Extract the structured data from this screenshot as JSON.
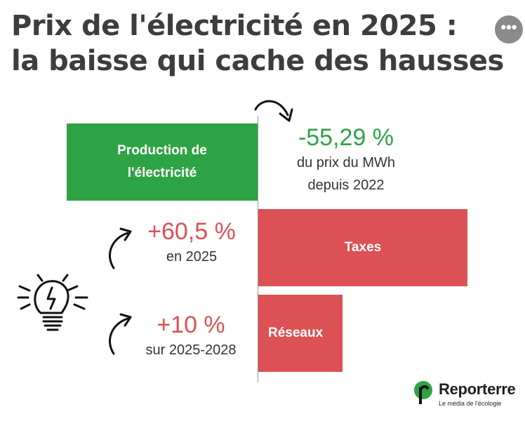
{
  "title": {
    "line1": "Prix de l'électricité en 2025 :",
    "line2": "la baisse qui cache des hausses"
  },
  "more_button": "•••",
  "chart_data": {
    "type": "bar",
    "orientation": "horizontal",
    "categories": [
      "Production de l'électricité",
      "Taxes",
      "Réseaux"
    ],
    "labels": {
      "production_line1": "Production de",
      "production_line2": "l'électricité",
      "taxes": "Taxes",
      "reseaux": "Réseaux"
    },
    "values": [
      -55.29,
      60.5,
      10
    ],
    "annotations": [
      {
        "value": "-55,29 %",
        "line1": "du prix du MWh",
        "line2": "depuis 2022"
      },
      {
        "value": "+60,5 %",
        "line1": "en 2025"
      },
      {
        "value": "+10 %",
        "line1": "sur 2025-2028"
      }
    ],
    "colors": {
      "decrease": "#2ea345",
      "increase": "#dc5155"
    }
  },
  "icons": [
    "curved-arrow-icon",
    "lightbulb-icon",
    "reporterre-logo-icon"
  ],
  "brand": {
    "name": "Reporterre",
    "tagline": "Le média de l'écologie",
    "color": "#2ea345"
  }
}
